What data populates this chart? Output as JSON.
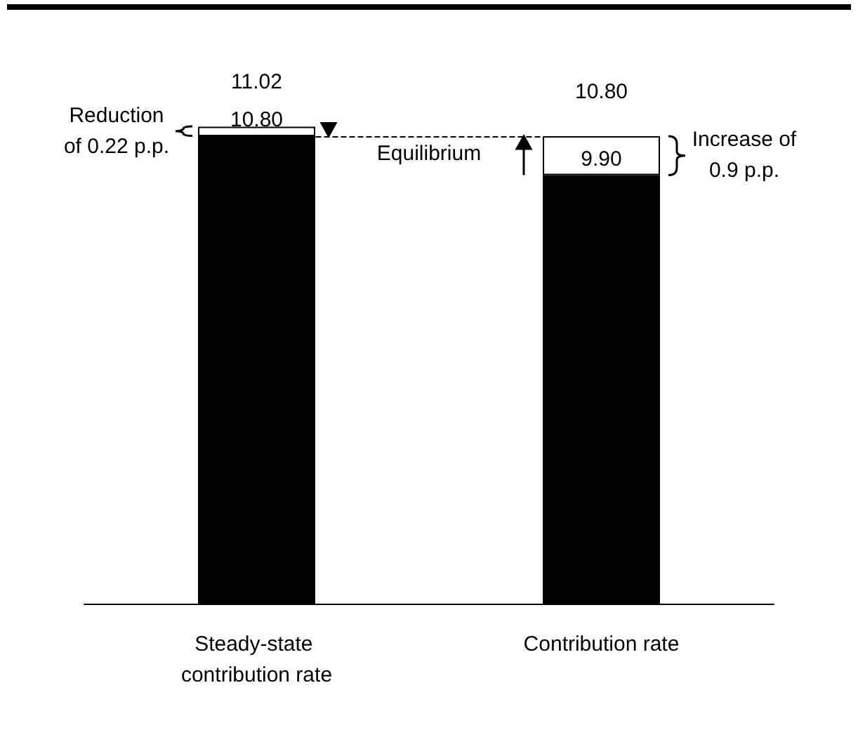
{
  "chart_data": {
    "type": "bar",
    "stacked": true,
    "categories": [
      "Steady-state contribution rate",
      "Contribution rate"
    ],
    "series": [
      {
        "color": "#000000",
        "values": [
          10.8,
          9.9
        ],
        "value_labels": [
          "10.80",
          "9.90"
        ]
      },
      {
        "color": "#ffffff",
        "values": [
          0.22,
          0.9
        ]
      }
    ],
    "totals": [
      "11.02",
      "10.80"
    ],
    "ref_lines": [
      {
        "axis": "y",
        "value": 10.8,
        "label": "Equilibrium",
        "line_style": "dashed",
        "color": "#000000"
      }
    ],
    "annotations": [
      "Reduction of 0.22 p.p.",
      "Increase of 0.9 p.p."
    ]
  }
}
